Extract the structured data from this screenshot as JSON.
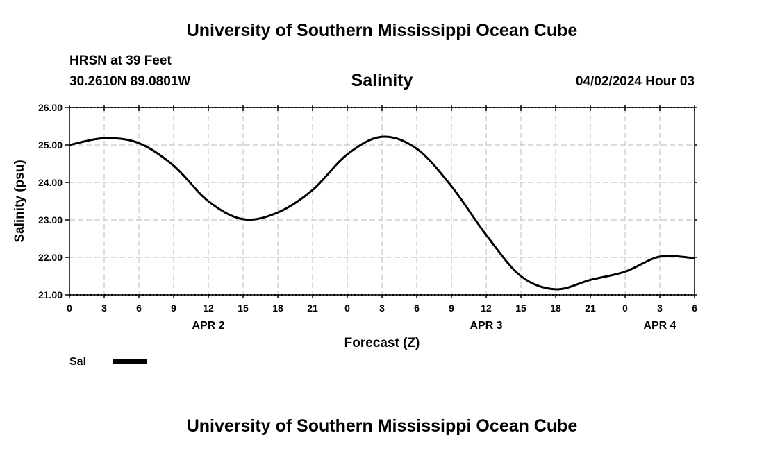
{
  "header": {
    "title": "University of Southern Mississippi Ocean Cube",
    "station": "HRSN at 39 Feet",
    "coords": "30.2610N  89.0801W",
    "chart_title": "Salinity",
    "datetime": "04/02/2024 Hour 03"
  },
  "footer": {
    "title": "University of Southern Mississippi Ocean Cube"
  },
  "legend": {
    "label": "Sal"
  },
  "chart_data": {
    "type": "line",
    "title": "Salinity",
    "xlabel": "Forecast (Z)",
    "ylabel": "Salinity (psu)",
    "ylim": [
      21.0,
      26.0
    ],
    "yticks": [
      "21.00",
      "22.00",
      "23.00",
      "24.00",
      "25.00",
      "26.00"
    ],
    "xlim": [
      0,
      54
    ],
    "xticks": [
      0,
      3,
      6,
      9,
      12,
      15,
      18,
      21,
      24,
      27,
      30,
      33,
      36,
      39,
      42,
      45,
      48,
      51,
      54
    ],
    "xtick_labels": [
      "0",
      "3",
      "6",
      "9",
      "12",
      "15",
      "18",
      "21",
      "0",
      "3",
      "6",
      "9",
      "12",
      "15",
      "18",
      "21",
      "0",
      "3",
      "6"
    ],
    "date_labels": [
      {
        "label": "APR 2",
        "hour": 12
      },
      {
        "label": "APR 3",
        "hour": 36
      },
      {
        "label": "APR 4",
        "hour": 51
      }
    ],
    "grid": true,
    "series": [
      {
        "name": "Sal",
        "color": "#000000",
        "x": [
          0,
          3,
          6,
          9,
          12,
          15,
          18,
          21,
          24,
          27,
          30,
          33,
          36,
          39,
          42,
          45,
          48,
          51,
          54
        ],
        "values": [
          25.0,
          25.18,
          25.05,
          24.45,
          23.5,
          23.02,
          23.2,
          23.8,
          24.75,
          25.22,
          24.9,
          23.9,
          22.6,
          21.5,
          21.15,
          21.4,
          21.62,
          22.02,
          21.98
        ]
      }
    ]
  }
}
